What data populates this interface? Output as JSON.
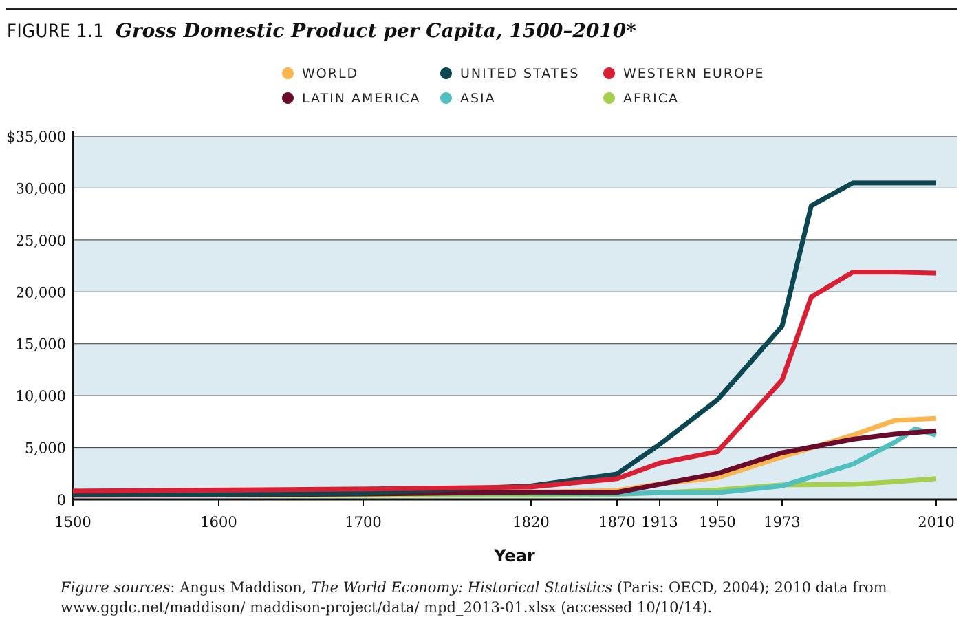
{
  "header": {
    "figure_label": "FIGURE 1.1",
    "title": "Gross Domestic Product per Capita, 1500–2010*"
  },
  "colors": {
    "World": "#f9b54e",
    "United States": "#0c4650",
    "Western Europe": "#d81f34",
    "Latin America": "#6b0b2c",
    "Asia": "#4fbfbf",
    "Africa": "#a6cf4d",
    "band": "#dceaf1"
  },
  "chart_data": {
    "type": "line",
    "title": "Gross Domestic Product per Capita, 1500–2010*",
    "xlabel": "Year",
    "ylabel": "",
    "xticks": [
      1500,
      1600,
      1700,
      1820,
      1870,
      1913,
      1950,
      1973,
      2010
    ],
    "yticks": [
      0,
      5000,
      10000,
      15000,
      20000,
      25000,
      30000,
      35000
    ],
    "ytick_labels": [
      "0",
      "5,000",
      "10,000",
      "15,000",
      "20,000",
      "25,000",
      "30,000",
      "$35,000"
    ],
    "ylim": [
      0,
      35000
    ],
    "legend_position": "top",
    "series": [
      {
        "name": "WORLD",
        "key": "World",
        "points": [
          [
            1500,
            600
          ],
          [
            1600,
            600
          ],
          [
            1700,
            620
          ],
          [
            1820,
            670
          ],
          [
            1870,
            870
          ],
          [
            1913,
            1500
          ],
          [
            1950,
            2100
          ],
          [
            1973,
            4100
          ],
          [
            1990,
            6200
          ],
          [
            2000,
            7600
          ],
          [
            2010,
            7800
          ]
        ]
      },
      {
        "name": "UNITED STATES",
        "key": "United States",
        "points": [
          [
            1500,
            500
          ],
          [
            1600,
            500
          ],
          [
            1700,
            600
          ],
          [
            1820,
            1300
          ],
          [
            1870,
            2450
          ],
          [
            1913,
            5300
          ],
          [
            1950,
            9600
          ],
          [
            1973,
            16700
          ],
          [
            1980,
            28300
          ],
          [
            1990,
            30500
          ],
          [
            2000,
            30500
          ],
          [
            2010,
            30500
          ]
        ]
      },
      {
        "name": "WESTERN EUROPE",
        "key": "Western Europe",
        "points": [
          [
            1500,
            800
          ],
          [
            1600,
            900
          ],
          [
            1700,
            1000
          ],
          [
            1820,
            1200
          ],
          [
            1870,
            2000
          ],
          [
            1913,
            3500
          ],
          [
            1950,
            4600
          ],
          [
            1973,
            11500
          ],
          [
            1980,
            19500
          ],
          [
            1990,
            21900
          ],
          [
            2000,
            21900
          ],
          [
            2010,
            21800
          ]
        ]
      },
      {
        "name": "LATIN AMERICA",
        "key": "Latin America",
        "points": [
          [
            1500,
            420
          ],
          [
            1600,
            440
          ],
          [
            1700,
            530
          ],
          [
            1820,
            700
          ],
          [
            1870,
            680
          ],
          [
            1913,
            1450
          ],
          [
            1950,
            2500
          ],
          [
            1973,
            4500
          ],
          [
            1990,
            5800
          ],
          [
            2000,
            6300
          ],
          [
            2010,
            6600
          ]
        ]
      },
      {
        "name": "ASIA",
        "key": "Asia",
        "points": [
          [
            1500,
            570
          ],
          [
            1600,
            570
          ],
          [
            1700,
            570
          ],
          [
            1820,
            580
          ],
          [
            1870,
            550
          ],
          [
            1913,
            650
          ],
          [
            1950,
            650
          ],
          [
            1973,
            1300
          ],
          [
            1990,
            3400
          ],
          [
            2000,
            5500
          ],
          [
            2005,
            6800
          ],
          [
            2010,
            6200
          ]
        ]
      },
      {
        "name": "AFRICA",
        "key": "Africa",
        "points": [
          [
            1500,
            400
          ],
          [
            1600,
            420
          ],
          [
            1700,
            420
          ],
          [
            1820,
            420
          ],
          [
            1870,
            500
          ],
          [
            1913,
            640
          ],
          [
            1950,
            900
          ],
          [
            1973,
            1400
          ],
          [
            1990,
            1450
          ],
          [
            2000,
            1700
          ],
          [
            2010,
            2000
          ]
        ]
      }
    ]
  },
  "source": {
    "prefix": "Figure sources",
    "text1": ": Angus Maddison",
    "book": ", The World Economy: Historical Statistics",
    "text2": " (Paris: OECD, 2004); 2010 data from",
    "line2": "www.ggdc.net/maddison/ maddison-project/data/ mpd_2013-01.xlsx (accessed 10/10/14)."
  }
}
